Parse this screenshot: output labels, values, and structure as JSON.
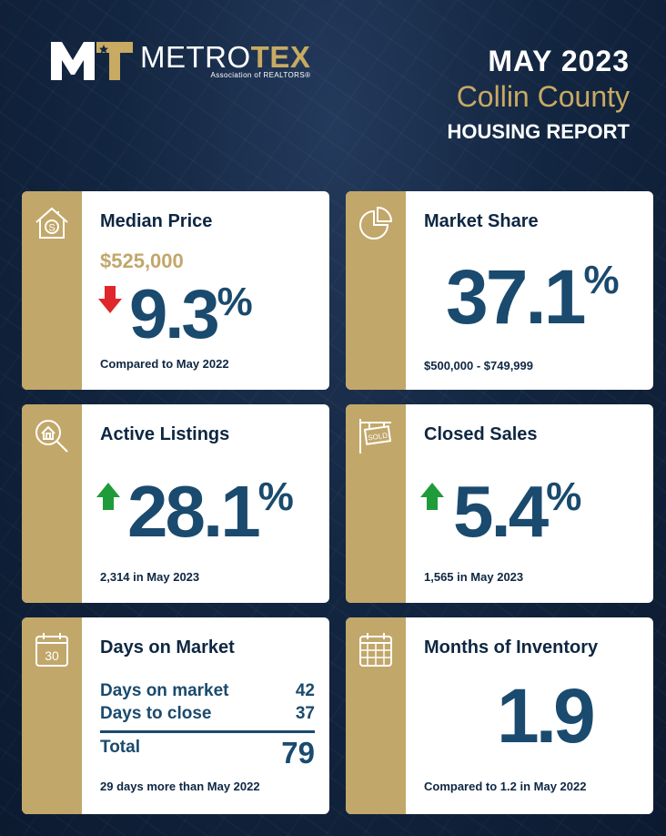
{
  "header": {
    "logo_name_a": "METRO",
    "logo_name_b": "TEX",
    "logo_sub": "Association of REALTORS®",
    "date": "MAY 2023",
    "county": "Collin County",
    "report": "HOUSING REPORT"
  },
  "colors": {
    "navy": "#0e2742",
    "gold": "#c2a76a",
    "value_blue": "#1a4a6e",
    "down_red": "#e0262b",
    "up_green": "#1f9b3a"
  },
  "median_price": {
    "title": "Median Price",
    "icon": "house-dollar-icon",
    "price": "$525,000",
    "direction": "down",
    "change": "9.3",
    "unit": "%",
    "note": "Compared to May 2022"
  },
  "market_share": {
    "title": "Market Share",
    "icon": "pie-chart-icon",
    "value": "37.1",
    "unit": "%",
    "note": "$500,000 - $749,999"
  },
  "active_listings": {
    "title": "Active Listings",
    "icon": "house-search-icon",
    "direction": "up",
    "change": "28.1",
    "unit": "%",
    "note": "2,314 in May 2023"
  },
  "closed_sales": {
    "title": "Closed Sales",
    "icon": "sold-sign-icon",
    "direction": "up",
    "change": "5.4",
    "unit": "%",
    "note": "1,565 in May 2023"
  },
  "days_on_market": {
    "title": "Days on Market",
    "icon": "calendar-30-icon",
    "calendar_number": "30",
    "rows": [
      {
        "label": "Days on market",
        "value": "42"
      },
      {
        "label": "Days to close",
        "value": "37"
      }
    ],
    "total_label": "Total",
    "total_value": "79",
    "note": "29 days more than May 2022"
  },
  "months_inventory": {
    "title": "Months of Inventory",
    "icon": "calendar-grid-icon",
    "value": "1.9",
    "note": "Compared to 1.2 in May 2022"
  }
}
